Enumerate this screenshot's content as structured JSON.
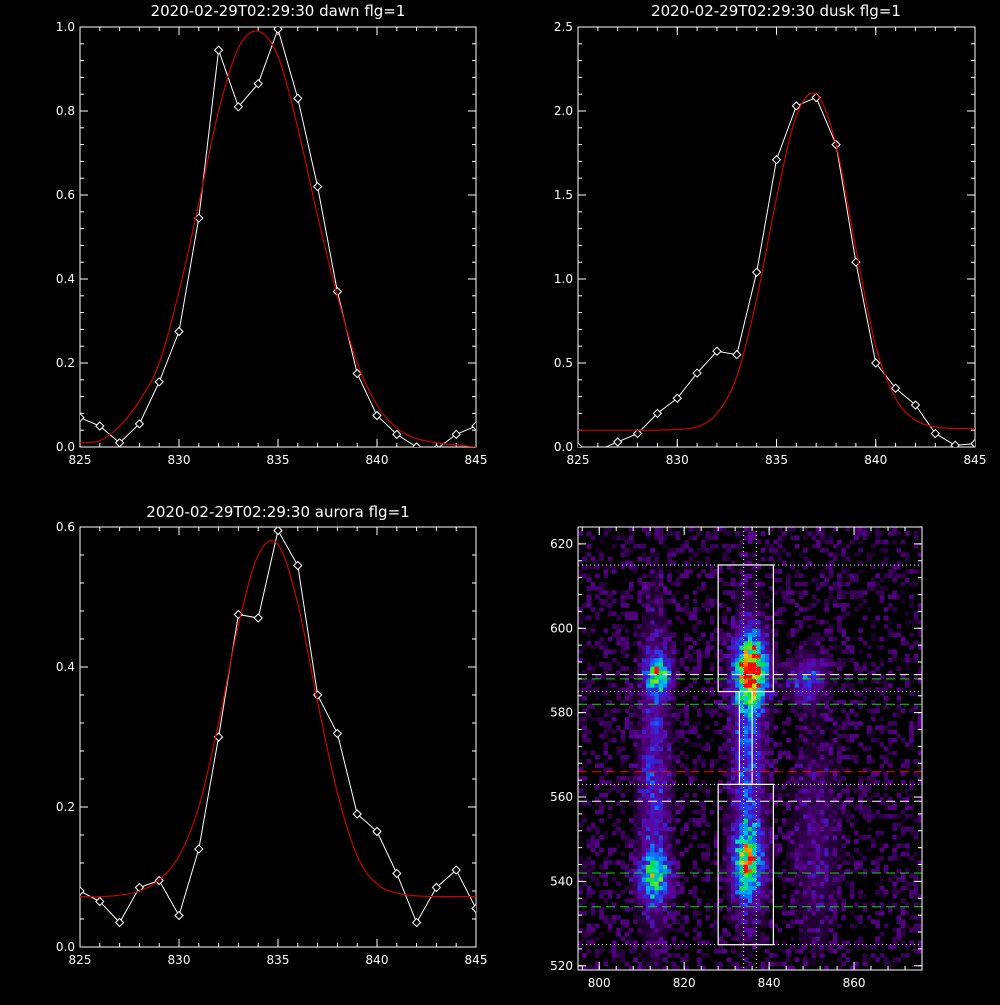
{
  "chart_data": [
    {
      "type": "line",
      "title": "2020-02-29T02:29:30 dawn flg=1",
      "xlim": [
        825,
        845
      ],
      "ylim": [
        0.0,
        1.0
      ],
      "xticks": [
        "825",
        "830",
        "835",
        "840",
        "845"
      ],
      "yticks": [
        "0.0",
        "0.2",
        "0.4",
        "0.6",
        "0.8",
        "1.0"
      ],
      "series": [
        {
          "color": "#ffffff",
          "markers": "diamond",
          "x": [
            825,
            826,
            827,
            828,
            829,
            830,
            831,
            832,
            833,
            834,
            835,
            836,
            837,
            838,
            839,
            840,
            841,
            842,
            843,
            844,
            845
          ],
          "y": [
            0.07,
            0.05,
            0.01,
            0.055,
            0.155,
            0.275,
            0.545,
            0.945,
            0.81,
            0.865,
            0.995,
            0.83,
            0.62,
            0.37,
            0.175,
            0.075,
            0.03,
            0.0,
            -0.005,
            0.03,
            0.05
          ]
        },
        {
          "color": "#cc0000",
          "markers": "none",
          "x": [
            825,
            826,
            827,
            828,
            829,
            830,
            831,
            832,
            833,
            834,
            835,
            836,
            837,
            838,
            839,
            840,
            841,
            842,
            843,
            844,
            845
          ],
          "y": [
            0.01,
            0.015,
            0.05,
            0.11,
            0.2,
            0.37,
            0.58,
            0.8,
            0.95,
            0.99,
            0.93,
            0.76,
            0.55,
            0.36,
            0.2,
            0.1,
            0.045,
            0.02,
            0.01,
            0.005,
            0.0
          ]
        }
      ]
    },
    {
      "type": "line",
      "title": "2020-02-29T02:29:30 dusk flg=1",
      "xlim": [
        825,
        845
      ],
      "ylim": [
        0.0,
        2.5
      ],
      "xticks": [
        "825",
        "830",
        "835",
        "840",
        "845"
      ],
      "yticks": [
        "0.0",
        "0.5",
        "1.0",
        "1.5",
        "2.0",
        "2.5"
      ],
      "series": [
        {
          "color": "#ffffff",
          "markers": "diamond",
          "x": [
            825,
            826,
            827,
            828,
            829,
            830,
            831,
            832,
            833,
            834,
            835,
            836,
            837,
            838,
            839,
            840,
            841,
            842,
            843,
            844,
            845
          ],
          "y": [
            0.0,
            -0.02,
            0.03,
            0.08,
            0.2,
            0.29,
            0.44,
            0.57,
            0.55,
            1.04,
            1.71,
            2.03,
            2.08,
            1.8,
            1.1,
            0.5,
            0.35,
            0.25,
            0.08,
            0.01,
            0.02
          ]
        },
        {
          "color": "#cc0000",
          "markers": "none",
          "x": [
            825,
            826,
            827,
            828,
            829,
            830,
            831,
            832,
            833,
            834,
            835,
            836,
            837,
            838,
            839,
            840,
            841,
            842,
            843,
            844,
            845
          ],
          "y": [
            0.1,
            0.1,
            0.1,
            0.1,
            0.1,
            0.105,
            0.12,
            0.2,
            0.42,
            0.88,
            1.48,
            1.97,
            2.1,
            1.8,
            1.18,
            0.6,
            0.29,
            0.16,
            0.12,
            0.11,
            0.11
          ]
        }
      ]
    },
    {
      "type": "line",
      "title": "2020-02-29T02:29:30 aurora flg=1",
      "xlim": [
        825,
        845
      ],
      "ylim": [
        0.0,
        0.6
      ],
      "xticks": [
        "825",
        "830",
        "835",
        "840",
        "845"
      ],
      "yticks": [
        "0.0",
        "0.2",
        "0.4",
        "0.6"
      ],
      "series": [
        {
          "color": "#ffffff",
          "markers": "diamond",
          "x": [
            825,
            826,
            827,
            828,
            829,
            830,
            831,
            832,
            833,
            834,
            835,
            836,
            837,
            838,
            839,
            840,
            841,
            842,
            843,
            844,
            845
          ],
          "y": [
            0.08,
            0.065,
            0.035,
            0.085,
            0.095,
            0.045,
            0.14,
            0.3,
            0.475,
            0.47,
            0.595,
            0.545,
            0.36,
            0.305,
            0.19,
            0.165,
            0.105,
            0.035,
            0.085,
            0.11,
            0.055
          ]
        },
        {
          "color": "#cc0000",
          "markers": "none",
          "x": [
            825,
            826,
            827,
            828,
            829,
            830,
            831,
            832,
            833,
            834,
            835,
            836,
            837,
            838,
            839,
            840,
            841,
            842,
            843,
            844,
            845
          ],
          "y": [
            0.072,
            0.072,
            0.074,
            0.08,
            0.096,
            0.13,
            0.2,
            0.32,
            0.46,
            0.56,
            0.575,
            0.49,
            0.35,
            0.22,
            0.13,
            0.09,
            0.077,
            0.073,
            0.072,
            0.072,
            0.072
          ]
        }
      ]
    },
    {
      "type": "heatmap",
      "xlim": [
        795,
        876
      ],
      "ylim": [
        519,
        624
      ],
      "xticks": [
        "800",
        "820",
        "840",
        "860"
      ],
      "yticks": [
        "520",
        "540",
        "560",
        "580",
        "600",
        "620"
      ],
      "colormap": "rainbow",
      "blobs": [
        {
          "x": 836,
          "y": 590,
          "sx": 2.5,
          "sy": 5,
          "amp": 1.0
        },
        {
          "x": 814,
          "y": 589,
          "sx": 2,
          "sy": 3,
          "amp": 0.65
        },
        {
          "x": 813,
          "y": 541,
          "sx": 2.5,
          "sy": 4,
          "amp": 0.55
        },
        {
          "x": 835,
          "y": 544,
          "sx": 2.5,
          "sy": 6,
          "amp": 0.6
        },
        {
          "x": 813,
          "y": 565,
          "sx": 2.5,
          "sy": 25,
          "amp": 0.28
        },
        {
          "x": 835,
          "y": 570,
          "sx": 2.5,
          "sy": 22,
          "amp": 0.38
        },
        {
          "x": 849,
          "y": 588,
          "sx": 3,
          "sy": 4,
          "amp": 0.3
        },
        {
          "x": 851,
          "y": 550,
          "sx": 4,
          "sy": 18,
          "amp": 0.14
        }
      ],
      "boxes": [
        {
          "x0": 828,
          "x1": 841,
          "y0": 585,
          "y1": 615
        },
        {
          "x0": 833,
          "x1": 836,
          "y0": 563,
          "y1": 585
        },
        {
          "x0": 828,
          "x1": 841,
          "y0": 525,
          "y1": 563
        }
      ],
      "hlines": [
        {
          "y": 615,
          "color": "#ffffff",
          "style": "dotted"
        },
        {
          "y": 589,
          "color": "#ffffff",
          "style": "dashed"
        },
        {
          "y": 588,
          "color": "#00dd00",
          "style": "dashed"
        },
        {
          "y": 585,
          "color": "#ffffff",
          "style": "dotted"
        },
        {
          "y": 582,
          "color": "#00dd00",
          "style": "dashed"
        },
        {
          "y": 566,
          "color": "#ff0000",
          "style": "dashed"
        },
        {
          "y": 563,
          "color": "#ffffff",
          "style": "dotted"
        },
        {
          "y": 559,
          "color": "#ffffff",
          "style": "dashed"
        },
        {
          "y": 542,
          "color": "#00dd00",
          "style": "dashed"
        },
        {
          "y": 534,
          "color": "#00dd00",
          "style": "dashed"
        },
        {
          "y": 525,
          "color": "#ffffff",
          "style": "dotted"
        }
      ],
      "vlines": [
        {
          "x": 834,
          "color": "#ffffff",
          "style": "dotted"
        },
        {
          "x": 837,
          "color": "#ffffff",
          "style": "dotted"
        }
      ]
    }
  ]
}
